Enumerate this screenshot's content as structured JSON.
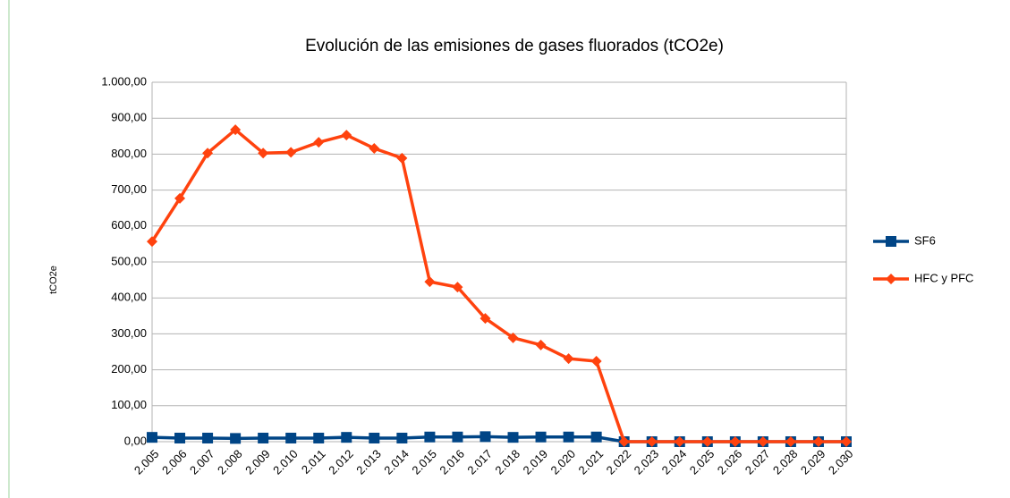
{
  "chart_data": {
    "type": "line",
    "title": "Evolución de las emisiones de gases fluorados (tCO2e)",
    "y_label": "tCO2e",
    "categories": [
      "2.005",
      "2.006",
      "2.007",
      "2.008",
      "2.009",
      "2.010",
      "2.011",
      "2.012",
      "2.013",
      "2.014",
      "2.015",
      "2.016",
      "2.017",
      "2.018",
      "2.019",
      "2.020",
      "2.021",
      "2.022",
      "2.023",
      "2.024",
      "2.025",
      "2.026",
      "2.027",
      "2.028",
      "2.029",
      "2.030"
    ],
    "series": [
      {
        "name": "SF6",
        "color": "#004586",
        "marker": "square",
        "values": [
          12,
          10,
          10,
          9,
          10,
          10,
          10,
          12,
          10,
          10,
          13,
          13,
          14,
          12,
          13,
          13,
          13,
          0,
          0,
          0,
          0,
          0,
          0,
          0,
          0,
          0
        ]
      },
      {
        "name": "HFC y PFC",
        "color": "#ff420e",
        "marker": "diamond",
        "values": [
          557,
          677,
          803,
          868,
          803,
          805,
          833,
          853,
          816,
          789,
          445,
          430,
          343,
          289,
          269,
          231,
          224,
          0,
          0,
          0,
          0,
          0,
          0,
          0,
          0,
          0
        ]
      }
    ],
    "ylim": [
      0,
      1000
    ],
    "yticks": [
      {
        "value": 0,
        "label": "0,00"
      },
      {
        "value": 100,
        "label": "100,00"
      },
      {
        "value": 200,
        "label": "200,00"
      },
      {
        "value": 300,
        "label": "300,00"
      },
      {
        "value": 400,
        "label": "400,00"
      },
      {
        "value": 500,
        "label": "500,00"
      },
      {
        "value": 600,
        "label": "600,00"
      },
      {
        "value": 700,
        "label": "700,00"
      },
      {
        "value": 800,
        "label": "800,00"
      },
      {
        "value": 900,
        "label": "900,00"
      },
      {
        "value": 1000,
        "label": "1.000,00"
      }
    ],
    "grid": true,
    "legend": "right"
  }
}
